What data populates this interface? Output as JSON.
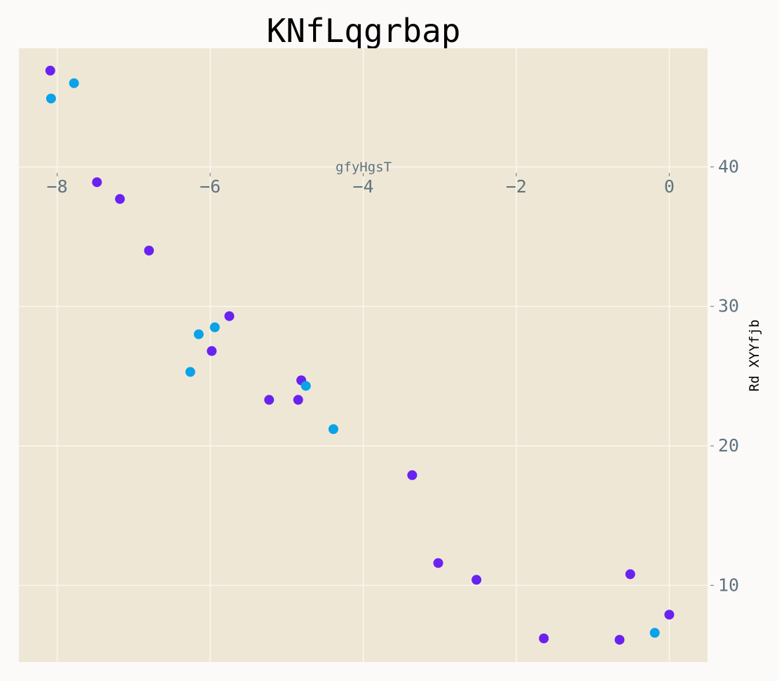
{
  "chart_data": {
    "type": "scatter",
    "title": "KNfLqgrbap",
    "xlabel": "gfyHgsT",
    "ylabel": "Rd XYYfjb",
    "xlim": [
      -8.5,
      0.5
    ],
    "ylim": [
      4.5,
      48.5
    ],
    "x_ticks": [
      "−8",
      "−6",
      "−4",
      "−2",
      "0"
    ],
    "y_ticks": [
      "10",
      "20",
      "30",
      "40"
    ],
    "x_tick_values": [
      -8,
      -6,
      -4,
      -2,
      0
    ],
    "y_tick_values": [
      10,
      20,
      30,
      40
    ],
    "grid": true,
    "series": [
      {
        "color": "#6a22f1",
        "x": [
          -8.09,
          -7.48,
          -7.18,
          -6.8,
          -5.75,
          -5.98,
          -4.81,
          -5.23,
          -4.85,
          -3.36,
          -3.02,
          -2.52,
          -1.64,
          -0.51,
          0.0,
          -0.65
        ],
        "y": [
          46.9,
          38.9,
          37.7,
          34.0,
          29.3,
          26.8,
          24.7,
          23.3,
          23.3,
          17.9,
          11.6,
          10.4,
          6.2,
          10.8,
          7.9,
          6.1
        ]
      },
      {
        "color": "#0aa2e8",
        "x": [
          -7.78,
          -8.08,
          -6.15,
          -5.94,
          -6.26,
          -4.75,
          -4.39,
          -0.19
        ],
        "y": [
          46.0,
          44.9,
          28.0,
          28.5,
          25.3,
          24.3,
          21.2,
          6.6
        ]
      }
    ]
  },
  "colors": {
    "page_background": "#fcf9f9",
    "plot_background": "#efe7d6",
    "grid": "#fbf6ec",
    "tick_text": "#5e7480",
    "xlabel_text": "#5e7480",
    "ylabel_text": "#000000"
  }
}
